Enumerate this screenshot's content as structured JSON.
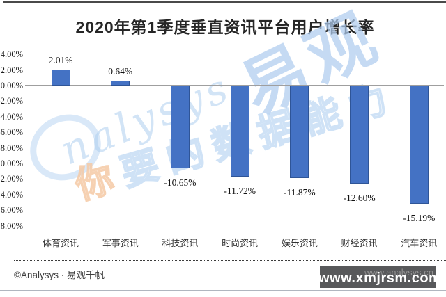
{
  "page": {
    "title": "2020年第1季度垂直资讯平台用户增长率"
  },
  "chart_data": {
    "type": "bar",
    "title": "2020年第1季度垂直资讯平台用户增长率",
    "categories": [
      "体育资讯",
      "军事资讯",
      "科技资讯",
      "时尚资讯",
      "娱乐资讯",
      "财经资讯",
      "汽车资讯"
    ],
    "values": [
      2.01,
      0.64,
      -10.65,
      -11.72,
      -11.87,
      -12.6,
      -15.19
    ],
    "data_labels": [
      "2.01%",
      "0.64%",
      "-10.65%",
      "-11.72%",
      "-11.87%",
      "-12.60%",
      "-15.19%"
    ],
    "yticks": [
      4,
      2,
      0,
      -2,
      -4,
      -6,
      -8,
      -10,
      -12,
      -14,
      -16,
      -18
    ],
    "ytick_labels": [
      "4.00%",
      "2.00%",
      "0.00%",
      "-2.00%",
      "-4.00%",
      "-6.00%",
      "-8.00%",
      "-10.00%",
      "-12.00%",
      "-14.00%",
      "-16.00%",
      "-18.00%"
    ],
    "ylim": [
      -18,
      4
    ],
    "xlabel": "",
    "ylabel": "",
    "grid": false,
    "legend": null,
    "bar_color": "#4472c4",
    "bar_border_color": "#2f5597"
  },
  "watermark": {
    "brand_script": "nalysys",
    "brand_cjk": "易观",
    "slogan_first_char": "你",
    "slogan_rest": "要的数据能力",
    "blue": "#c8dcf3",
    "orange": "#f5c9a4"
  },
  "footer": {
    "copyright": "©Analysys · 易观千帆",
    "source_url": "www.analysys.cn",
    "overlay_url": "www.xmjrsm.com",
    "overlay_bg": "#58595b"
  }
}
